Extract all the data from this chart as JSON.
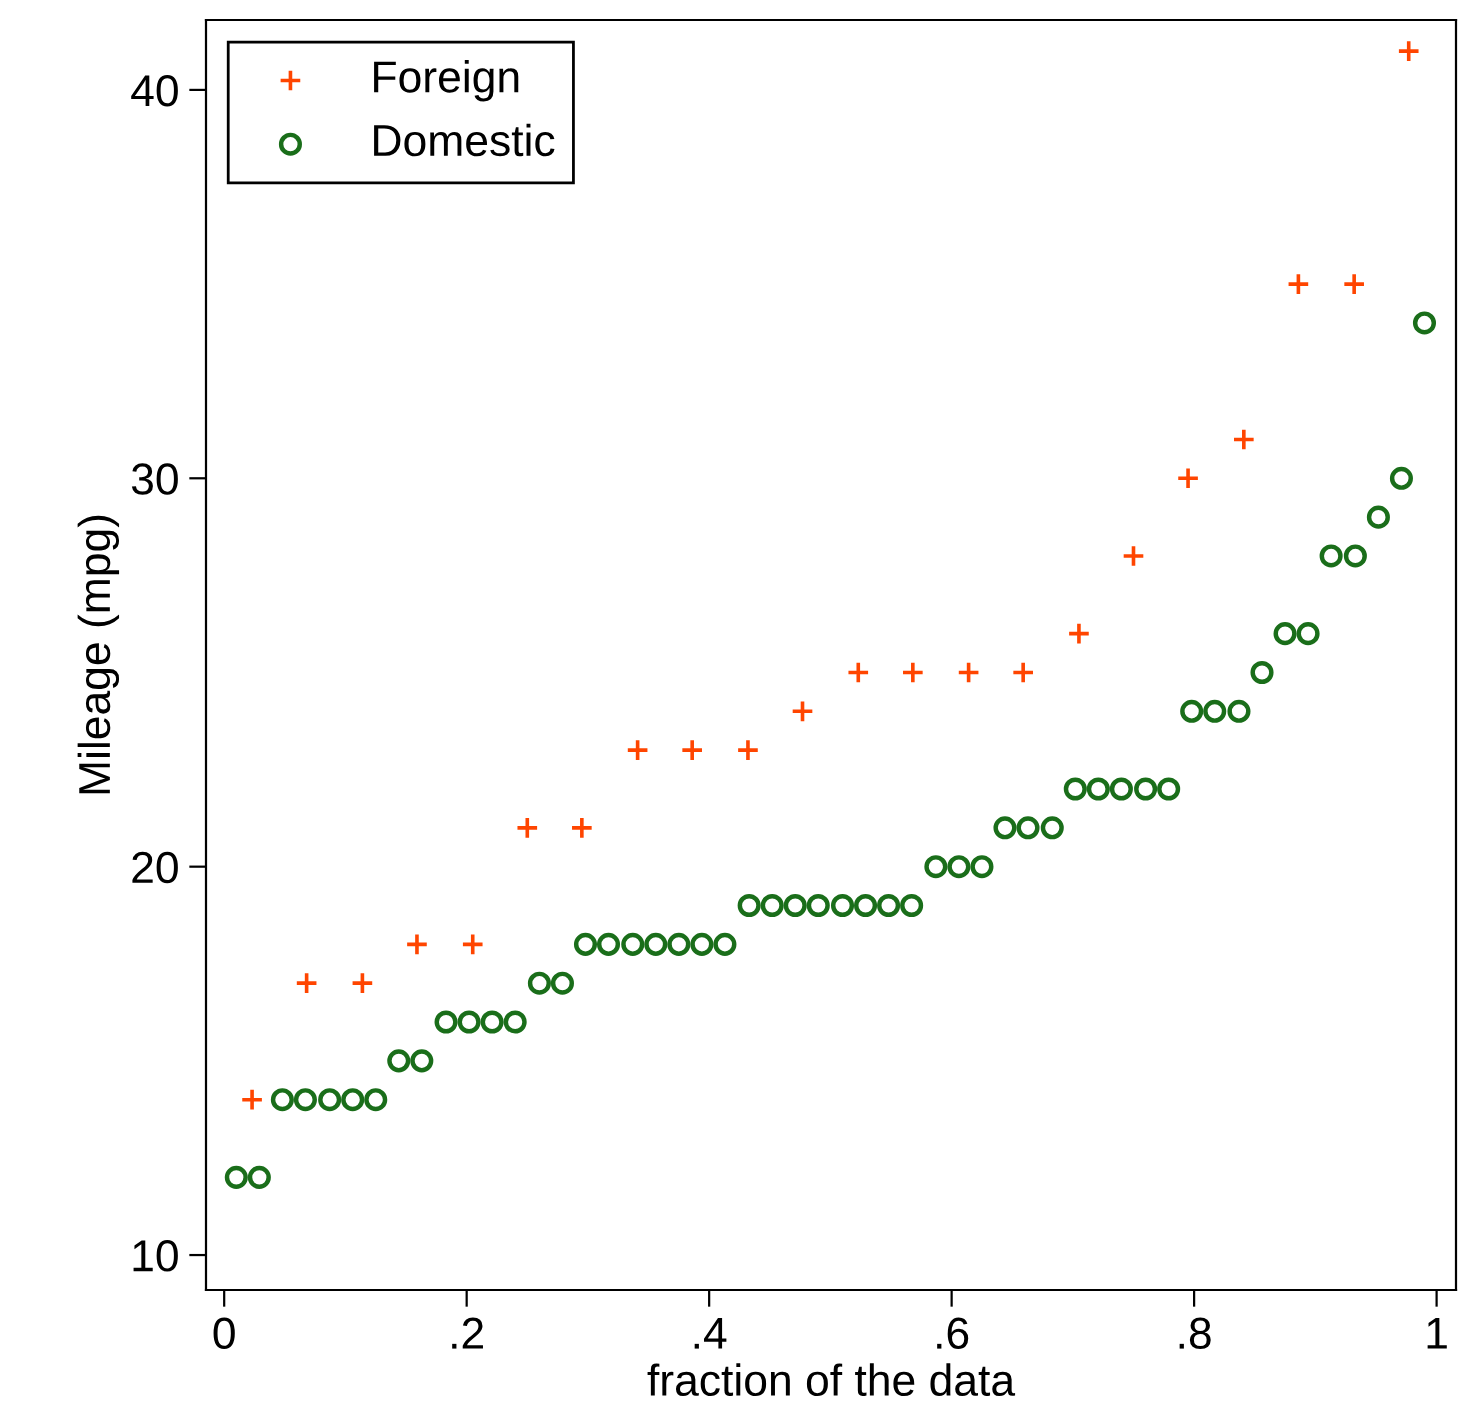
{
  "chart_data": {
    "type": "scatter",
    "xlabel": "fraction of the data",
    "ylabel": "Mileage (mpg)",
    "xlim": [
      -0.015,
      1.016
    ],
    "ylim": [
      9.1,
      41.8
    ],
    "xticks": [
      0,
      {
        "value": 0.2,
        "label": ".2"
      },
      {
        "value": 0.4,
        "label": ".4"
      },
      {
        "value": 0.6,
        "label": ".6"
      },
      {
        "value": 0.8,
        "label": ".8"
      },
      1
    ],
    "yticks": [
      10,
      20,
      30,
      40
    ],
    "grid": false,
    "legend": "top left",
    "series": [
      {
        "name": "Foreign",
        "color": "#ff4500",
        "marker": "cross",
        "x": [
          0.023,
          0.068,
          0.114,
          0.159,
          0.205,
          0.25,
          0.295,
          0.341,
          0.386,
          0.432,
          0.477,
          0.523,
          0.568,
          0.614,
          0.659,
          0.705,
          0.75,
          0.795,
          0.841,
          0.886,
          0.932,
          0.977
        ],
        "values": [
          14,
          17,
          17,
          18,
          18,
          21,
          21,
          23,
          23,
          23,
          24,
          25,
          25,
          25,
          25,
          26,
          28,
          30,
          31,
          35,
          35,
          41
        ]
      },
      {
        "name": "Domestic",
        "color": "#1a6e1a",
        "marker": "circle",
        "x": [
          0.01,
          0.029,
          0.048,
          0.067,
          0.087,
          0.106,
          0.125,
          0.144,
          0.163,
          0.183,
          0.202,
          0.221,
          0.24,
          0.26,
          0.279,
          0.298,
          0.317,
          0.337,
          0.356,
          0.375,
          0.394,
          0.413,
          0.433,
          0.452,
          0.471,
          0.49,
          0.51,
          0.529,
          0.548,
          0.567,
          0.587,
          0.606,
          0.625,
          0.644,
          0.663,
          0.683,
          0.702,
          0.721,
          0.74,
          0.76,
          0.779,
          0.798,
          0.817,
          0.837,
          0.856,
          0.875,
          0.894,
          0.913,
          0.933,
          0.952,
          0.971,
          0.99
        ],
        "values": [
          12,
          12,
          14,
          14,
          14,
          14,
          14,
          15,
          15,
          16,
          16,
          16,
          16,
          17,
          17,
          18,
          18,
          18,
          18,
          18,
          18,
          18,
          19,
          19,
          19,
          19,
          19,
          19,
          19,
          19,
          20,
          20,
          20,
          21,
          21,
          21,
          22,
          22,
          22,
          22,
          22,
          24,
          24,
          24,
          25,
          26,
          26,
          28,
          28,
          29,
          30,
          34
        ]
      }
    ]
  }
}
